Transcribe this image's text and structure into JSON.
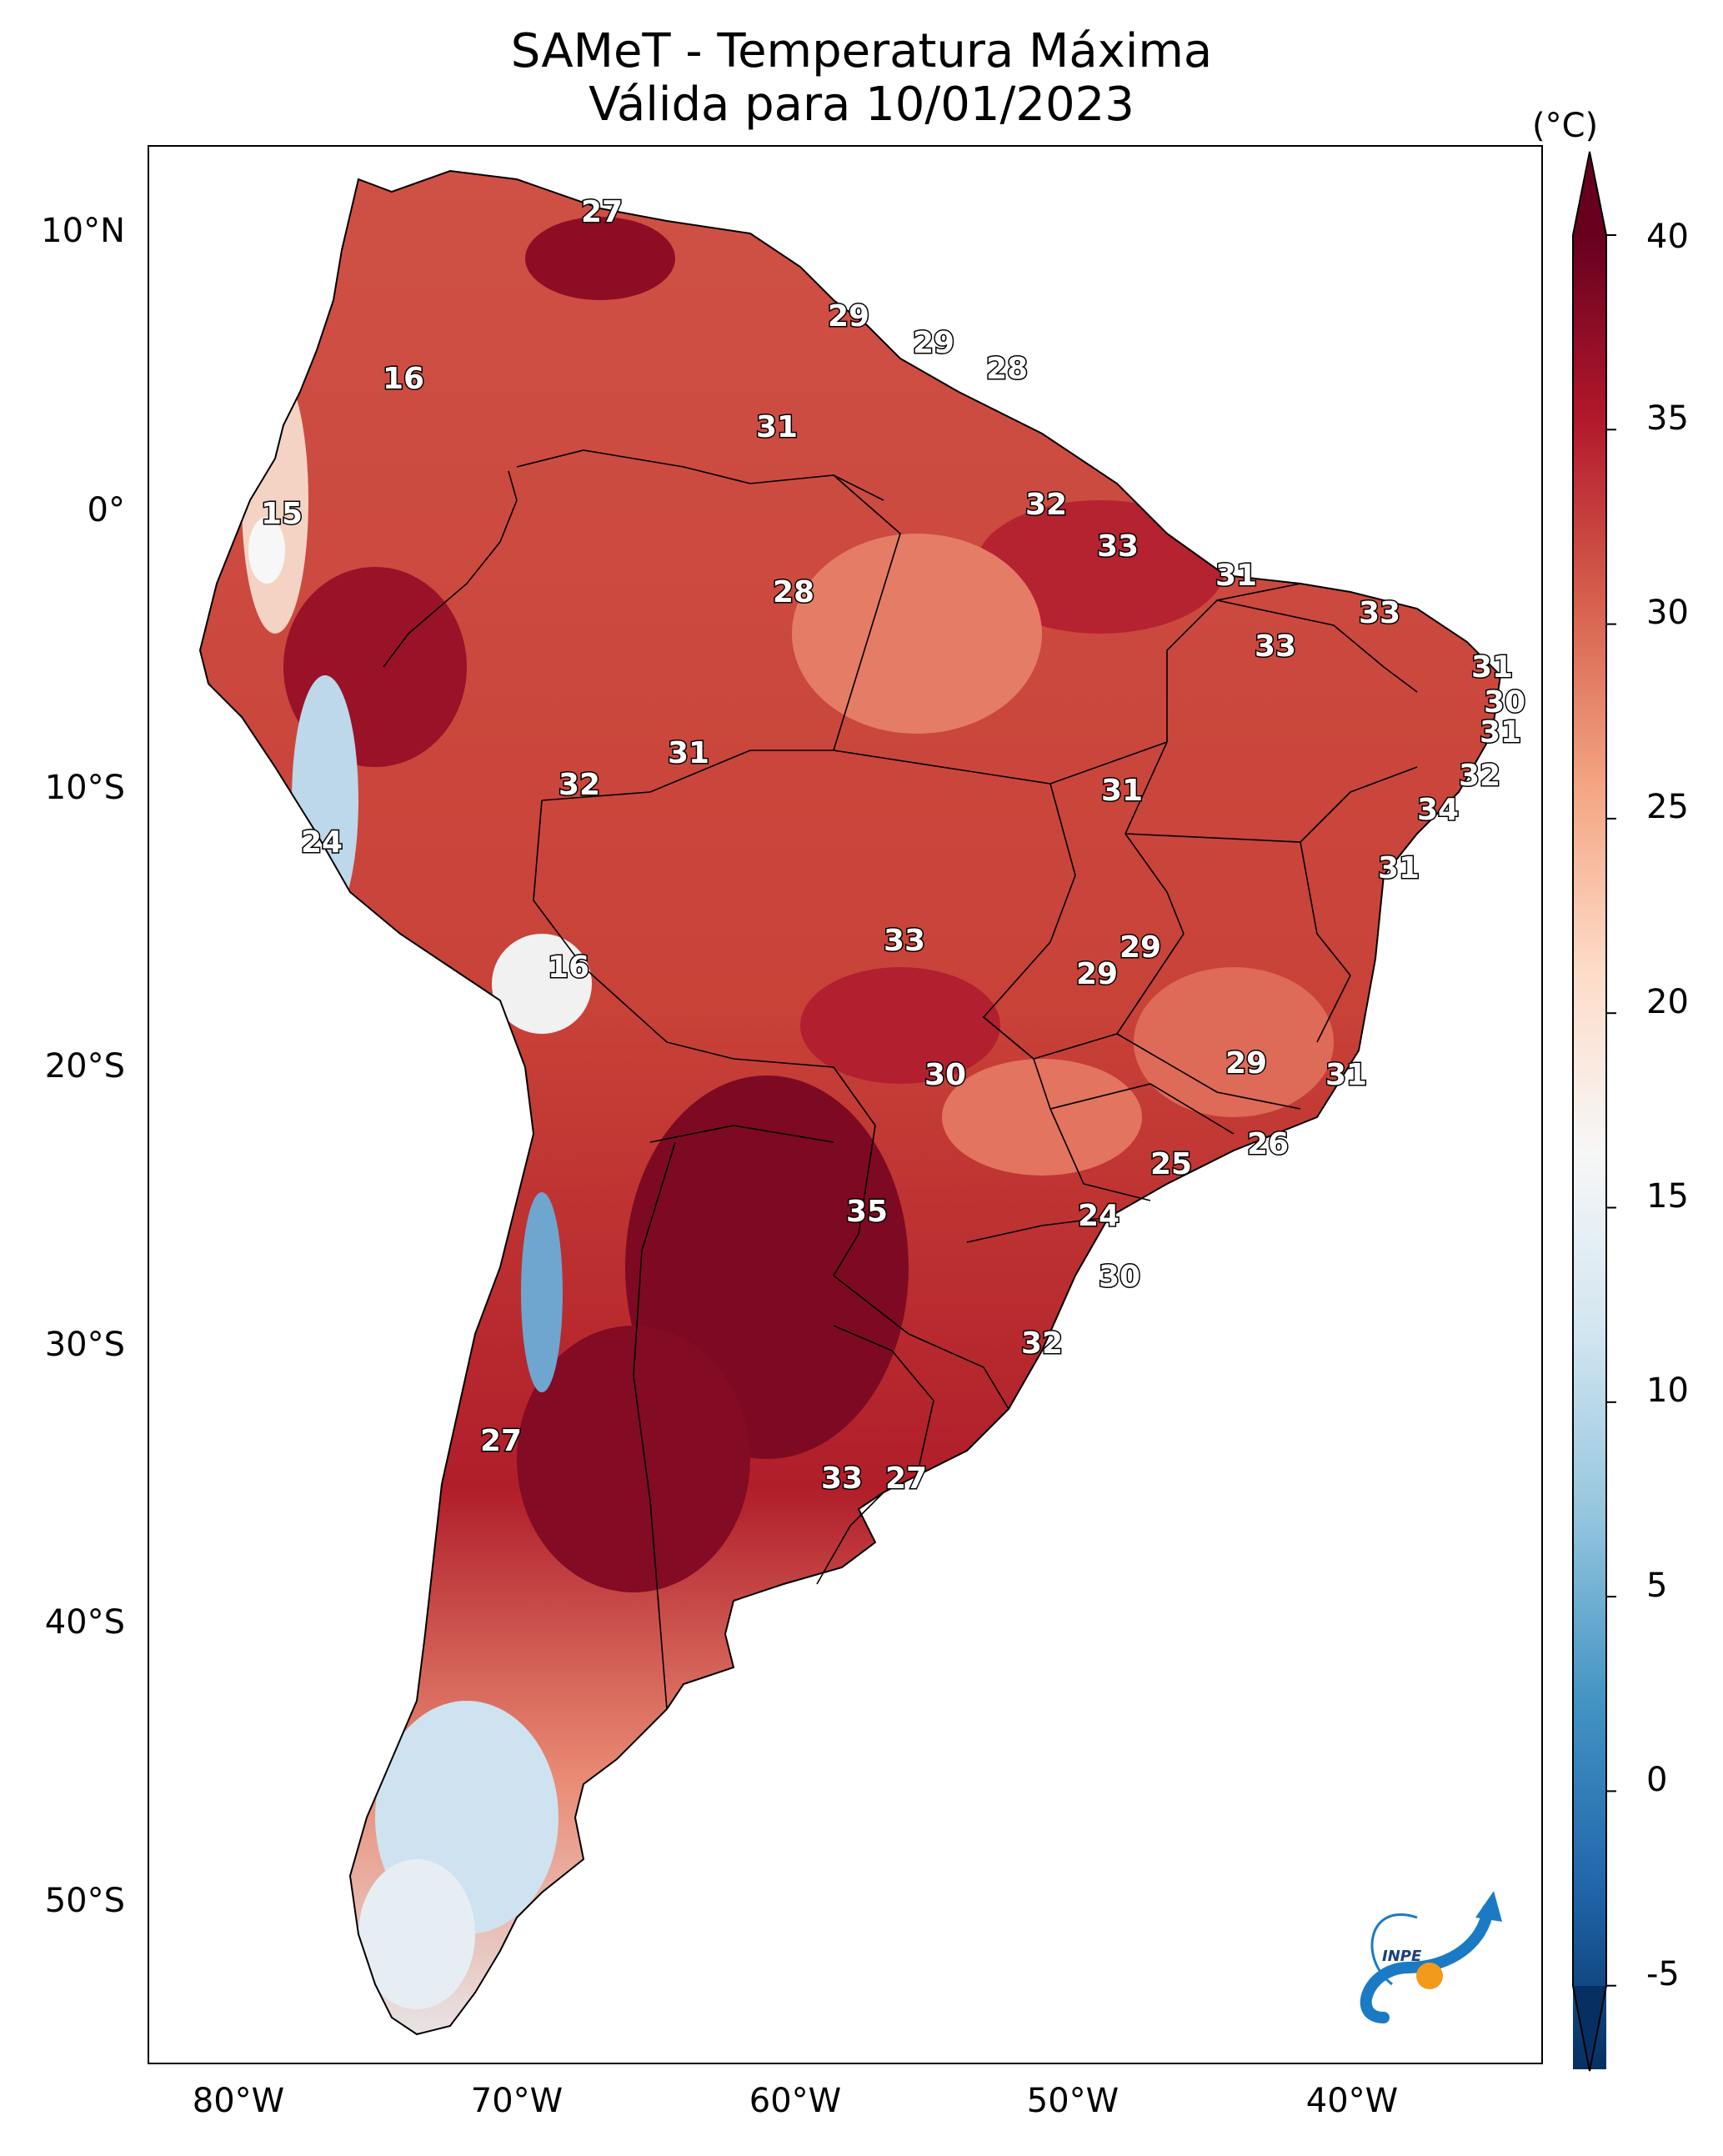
{
  "title": {
    "line1": "SAMeT - Temperatura Máxima",
    "line2": "Válida para 10/01/2023"
  },
  "axes": {
    "lat_ticks": [
      "10°N",
      "0°",
      "10°S",
      "20°S",
      "30°S",
      "40°S",
      "50°S"
    ],
    "lon_ticks": [
      "80°W",
      "70°W",
      "60°W",
      "50°W",
      "40°W"
    ]
  },
  "colorbar": {
    "unit": "(°C)",
    "ticks": [
      "40",
      "35",
      "30",
      "25",
      "20",
      "15",
      "10",
      "5",
      "0",
      "-5"
    ],
    "colors": [
      "#053061",
      "#2166ac",
      "#4393c3",
      "#92c5de",
      "#d1e5f0",
      "#f7f7f7",
      "#fddbc7",
      "#f4a582",
      "#d6604d",
      "#b2182b",
      "#67001f"
    ]
  },
  "map_labels": [
    "27",
    "29",
    "29",
    "28",
    "16",
    "31",
    "32",
    "15",
    "33",
    "31",
    "28",
    "33",
    "33",
    "31",
    "30",
    "31",
    "31",
    "32",
    "32",
    "31",
    "34",
    "24",
    "31",
    "29",
    "33",
    "16",
    "29",
    "29",
    "30",
    "31",
    "26",
    "25",
    "35",
    "24",
    "30",
    "32",
    "27",
    "33",
    "27"
  ],
  "logo": {
    "text": "INPE",
    "colors": {
      "blue": "#1a7bc4",
      "orange": "#f39a1c"
    }
  }
}
